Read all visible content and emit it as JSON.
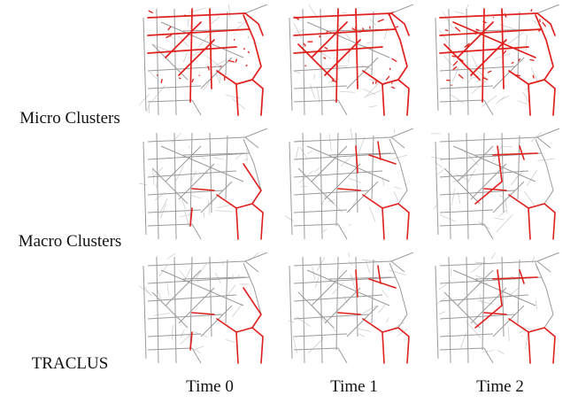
{
  "figure": {
    "rows": [
      {
        "label": "Micro Clusters"
      },
      {
        "label": "Macro Clusters"
      },
      {
        "label": "TRACLUS"
      }
    ],
    "columns": [
      {
        "label": "Time 0"
      },
      {
        "label": "Time 1"
      },
      {
        "label": "Time 2"
      }
    ],
    "colors": {
      "road_network": "#9a9a9a",
      "road_network_light": "#cfcfcf",
      "cluster_highlight": "#e0201c"
    }
  }
}
